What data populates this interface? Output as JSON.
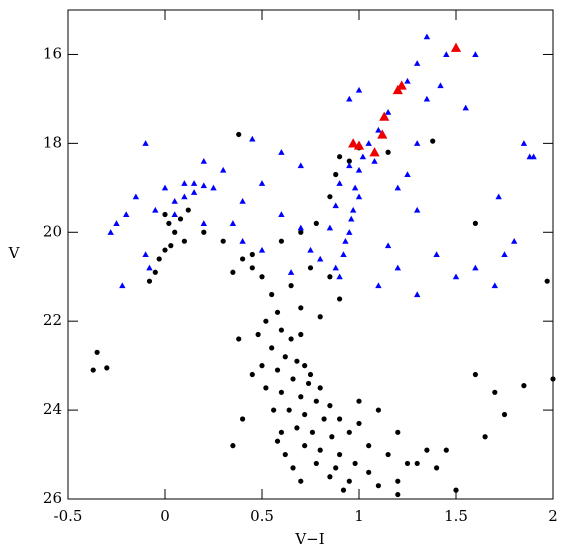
{
  "chart_data": {
    "type": "scatter",
    "xlabel": "V−I",
    "ylabel": "V",
    "xlim": [
      -0.5,
      2
    ],
    "ylim": [
      26,
      15
    ],
    "xticks": [
      -0.5,
      0,
      0.5,
      1,
      1.5,
      2
    ],
    "yticks": [
      16,
      18,
      20,
      22,
      24,
      26
    ],
    "series": [
      {
        "color": "#000000",
        "marker": "circle",
        "x": [
          0.6,
          0.65,
          0.7,
          0.62,
          0.68,
          0.72,
          0.58,
          0.66,
          0.74,
          0.6,
          0.7,
          0.78,
          0.64,
          0.72,
          0.82,
          0.68,
          0.76,
          0.86,
          0.72,
          0.8,
          0.9,
          0.78,
          0.88,
          0.98,
          0.85,
          0.95,
          1.05,
          0.92,
          1.1,
          1.2,
          1.25,
          1.15,
          1.05,
          0.95,
          1.0,
          0.9,
          0.85,
          0.8,
          0.75,
          0.55,
          0.5,
          0.52,
          0.56,
          0.6,
          0.62,
          0.58,
          0.66,
          0.7,
          0.45,
          0.48,
          0.52,
          0.58,
          0.7,
          0.8,
          0.9,
          0.85,
          0.75,
          0.65,
          0.55,
          0.5,
          0.45,
          0.4,
          0.35,
          0.3,
          0.2,
          0.45,
          0.6,
          0.7,
          0.78,
          0.85,
          0.88,
          0.9,
          0.95,
          1.0,
          1.15,
          0.38,
          0.38,
          0.35,
          0.4,
          1.3,
          1.35,
          1.4,
          1.2,
          1.1,
          1.0,
          0.0,
          0.02,
          0.05,
          0.08,
          0.1,
          0.0,
          -0.03,
          -0.05,
          -0.08,
          0.03,
          0.12,
          -0.35,
          -0.37,
          -0.3,
          1.6,
          1.97,
          2.0,
          1.85,
          1.7,
          1.6,
          1.65,
          1.5,
          1.45,
          1.75,
          1.38,
          1.2
        ],
        "y": [
          22.2,
          22.4,
          22.3,
          22.8,
          22.9,
          23.0,
          23.1,
          23.3,
          23.4,
          23.6,
          23.7,
          23.8,
          24.0,
          24.1,
          24.2,
          24.4,
          24.5,
          24.6,
          24.8,
          24.9,
          25.0,
          25.2,
          25.3,
          25.2,
          25.5,
          25.6,
          25.4,
          25.8,
          25.7,
          25.9,
          25.2,
          25.0,
          24.8,
          24.5,
          24.3,
          24.2,
          23.9,
          23.5,
          23.2,
          22.6,
          23.0,
          23.5,
          24.0,
          24.5,
          25.0,
          24.7,
          25.3,
          25.6,
          23.2,
          22.3,
          22.0,
          21.8,
          21.7,
          21.9,
          21.5,
          21.0,
          20.8,
          21.2,
          21.4,
          21.0,
          20.8,
          20.6,
          20.9,
          20.2,
          20.0,
          20.5,
          20.2,
          20.0,
          19.8,
          19.2,
          18.7,
          18.3,
          18.4,
          18.1,
          18.2,
          17.8,
          22.4,
          24.8,
          24.2,
          25.2,
          24.9,
          25.3,
          24.5,
          24.0,
          23.8,
          19.6,
          19.8,
          20.0,
          19.7,
          20.2,
          20.4,
          20.6,
          20.9,
          21.1,
          20.3,
          19.5,
          22.7,
          23.1,
          23.05,
          19.8,
          21.1,
          23.3,
          23.45,
          23.6,
          23.2,
          24.6,
          25.8,
          24.9,
          24.1,
          17.95,
          25.6
        ]
      },
      {
        "color": "#0000ff",
        "marker": "triangle",
        "x": [
          0.9,
          0.92,
          0.95,
          0.97,
          0.98,
          1.0,
          1.02,
          1.05,
          0.88,
          0.93,
          0.96,
          1.0,
          0.85,
          0.88,
          0.9,
          0.95,
          1.08,
          1.1,
          1.15,
          1.25,
          1.3,
          1.35,
          1.45,
          1.42,
          1.6,
          1.55,
          1.35,
          1.3,
          1.2,
          1.3,
          1.4,
          1.5,
          1.2,
          1.1,
          1.3,
          1.85,
          1.88,
          1.72,
          1.75,
          1.8,
          1.6,
          1.7,
          0.7,
          0.6,
          0.5,
          0.4,
          0.3,
          0.2,
          0.25,
          0.2,
          0.15,
          0.1,
          0.05,
          0.0,
          -0.05,
          -0.1,
          -0.15,
          -0.2,
          -0.25,
          -0.28,
          -0.22,
          -0.1,
          -0.08,
          0.05,
          0.1,
          0.15,
          0.2,
          0.6,
          0.7,
          0.75,
          0.8,
          0.65,
          0.5,
          0.4,
          0.35,
          0.45,
          0.95,
          1.0,
          1.9,
          1.15,
          1.25
        ],
        "y": [
          21.0,
          20.5,
          20.0,
          19.5,
          19.0,
          18.6,
          18.3,
          18.0,
          20.8,
          20.2,
          19.7,
          19.2,
          19.9,
          19.4,
          18.9,
          18.5,
          18.4,
          17.7,
          17.3,
          16.6,
          16.2,
          15.6,
          16.0,
          16.7,
          16.0,
          17.2,
          17.0,
          18.0,
          19.0,
          19.5,
          20.5,
          21.0,
          20.8,
          21.2,
          21.4,
          18.0,
          18.3,
          19.2,
          20.5,
          20.2,
          20.8,
          21.2,
          18.5,
          18.2,
          18.9,
          19.3,
          18.6,
          18.4,
          19.0,
          19.8,
          19.1,
          18.9,
          19.3,
          19.0,
          19.5,
          18.0,
          19.2,
          19.6,
          19.8,
          20.0,
          21.2,
          20.5,
          20.8,
          19.6,
          19.2,
          18.9,
          18.95,
          19.6,
          19.9,
          20.4,
          20.6,
          20.9,
          20.4,
          20.2,
          19.8,
          17.9,
          17.0,
          16.8,
          18.3,
          20.3,
          18.7
        ]
      },
      {
        "color": "#ee0000",
        "marker": "triangle",
        "x": [
          1.5,
          1.2,
          1.22,
          1.13,
          1.12,
          0.97,
          1.0,
          1.08
        ],
        "y": [
          15.85,
          16.8,
          16.7,
          17.4,
          17.8,
          18.0,
          18.05,
          18.2
        ]
      }
    ]
  }
}
